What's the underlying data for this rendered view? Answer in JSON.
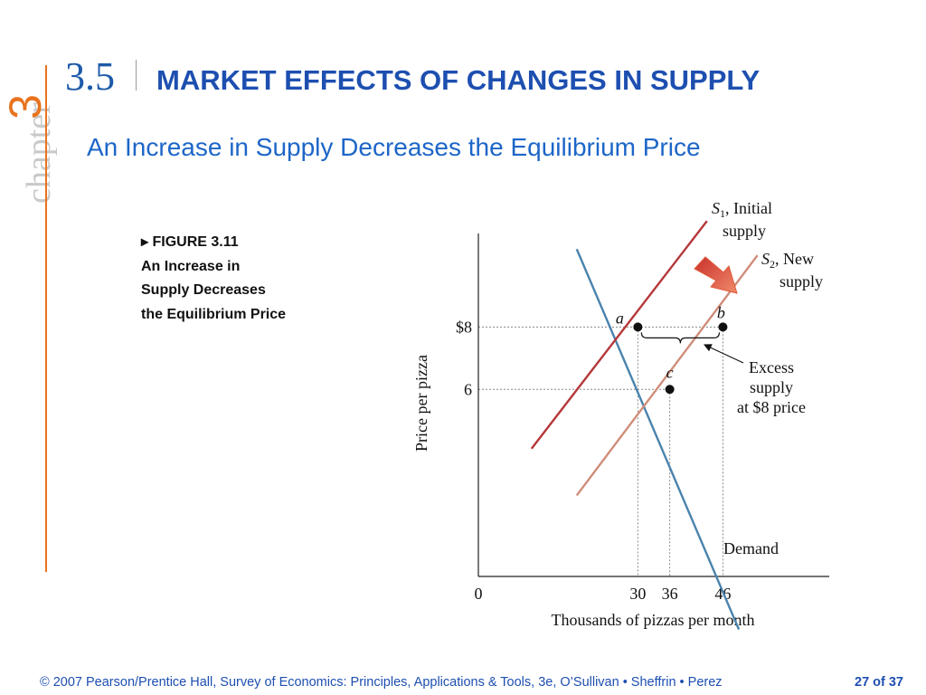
{
  "header": {
    "chapter_word": "chapter",
    "chapter_number": "3",
    "section_number": "3.5",
    "section_title": "MARKET EFFECTS OF CHANGES IN SUPPLY",
    "subtitle": "An Increase in Supply Decreases the Equilibrium Price"
  },
  "caption": {
    "figure": "▸ FIGURE 3.11",
    "line1": "An Increase in",
    "line2": "Supply Decreases",
    "line3": "the Equilibrium Price"
  },
  "chart_data": {
    "type": "line",
    "xlabel": "Thousands of pizzas per month",
    "ylabel": "Price per pizza",
    "x_ticks": [
      0,
      30,
      36,
      46
    ],
    "x_tick_labels": [
      "0",
      "30",
      "36",
      "46"
    ],
    "y_ticks": [
      8,
      6
    ],
    "y_tick_labels": [
      "$8",
      "6"
    ],
    "xlim": [
      0,
      66
    ],
    "ylim": [
      0,
      11
    ],
    "grid": false,
    "series": [
      {
        "name": "Demand",
        "label": "Demand",
        "points": [
          [
            18.5,
            10.5
          ],
          [
            49,
            -1.7
          ]
        ],
        "color": "#4a83ad"
      },
      {
        "name": "S1",
        "label_main": "S",
        "label_sub": "1",
        "label_rest": ", Initial",
        "label_line2": "supply",
        "points": [
          [
            10,
            4.1
          ],
          [
            43,
            11.4
          ]
        ],
        "color": "#b5383a"
      },
      {
        "name": "S2",
        "label_main": "S",
        "label_sub": "2",
        "label_rest": ", New",
        "label_line2": "supply",
        "points": [
          [
            18.5,
            2.6
          ],
          [
            52.5,
            10.3
          ]
        ],
        "color": "#cf8d7a"
      }
    ],
    "points": [
      {
        "label": "a",
        "x": 30,
        "y": 8
      },
      {
        "label": "b",
        "x": 46,
        "y": 8
      },
      {
        "label": "c",
        "x": 36,
        "y": 6
      }
    ],
    "annotation": {
      "lines": [
        "Excess",
        "supply",
        "at $8 price"
      ],
      "brace_from_x": 30,
      "brace_to_x": 46,
      "brace_y": 8
    },
    "shift_arrow": {
      "from": "S1",
      "to": "S2",
      "color": "#e05a3a"
    }
  },
  "footer": {
    "text": "© 2007 Pearson/Prentice Hall, Survey of Economics: Principles, Applications & Tools, 3e, O’Sullivan • Sheffrin • Perez",
    "page": "27 of 37"
  },
  "colors": {
    "title_blue": "#1d4fb0",
    "subtitle_blue": "#1d66c8",
    "accent_orange": "#e8731e",
    "chapter_grey": "#c9c9c9"
  }
}
